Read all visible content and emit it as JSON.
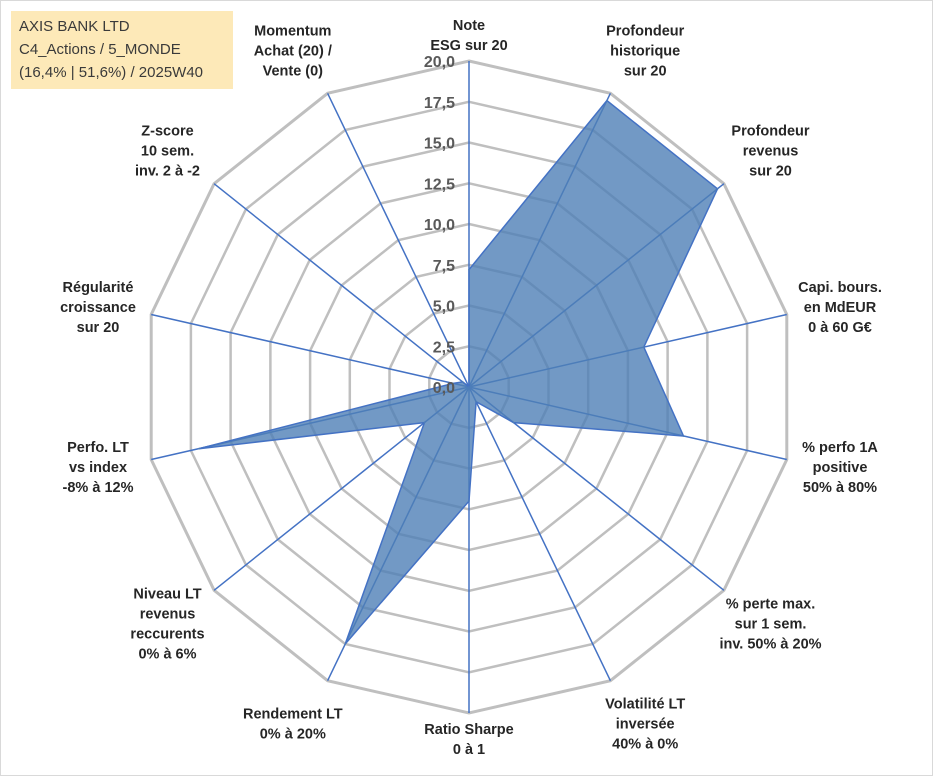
{
  "title_box": {
    "line1": "AXIS BANK LTD",
    "line2": "C4_Actions / 5_MONDE",
    "line3": "(16,4% | 51,6%) / 2025W40"
  },
  "colors": {
    "fill": "#4f7fb6",
    "spoke": "#4472c4",
    "grid": "#bfbfbf",
    "title_bg": "#fde9b8"
  },
  "chart_data": {
    "type": "radar",
    "r_range": [
      0,
      20
    ],
    "tick_values": [
      0,
      2.5,
      5,
      7.5,
      10,
      12.5,
      15,
      17.5,
      20
    ],
    "tick_labels": [
      "0,0",
      "2,5",
      "5,0",
      "7,5",
      "10,0",
      "12,5",
      "15,0",
      "17,5",
      "20,0"
    ],
    "axes": [
      {
        "label": [
          "Note",
          "ESG sur 20"
        ],
        "value": 7.2
      },
      {
        "label": [
          "Profondeur",
          "historique",
          "sur 20"
        ],
        "value": 19.5
      },
      {
        "label": [
          "Profondeur",
          "revenus",
          "sur 20"
        ],
        "value": 19.5
      },
      {
        "label": [
          "Capi. bours.",
          "en MdEUR",
          "0 à 60 G€"
        ],
        "value": 11.0
      },
      {
        "label": [
          "% perfo 1A",
          "positive",
          "50% à 80%"
        ],
        "value": 13.5
      },
      {
        "label": [
          "% perte max.",
          "sur 1 sem.",
          "inv. 50% à 20%"
        ],
        "value": 3.5
      },
      {
        "label": [
          "Volatilité LT",
          "inversée",
          "40% à 0%"
        ],
        "value": 1.0
      },
      {
        "label": [
          "Ratio Sharpe",
          "0 à 1"
        ],
        "value": 7.0
      },
      {
        "label": [
          "Rendement LT",
          "0% à 20%"
        ],
        "value": 17.5
      },
      {
        "label": [
          "Niveau LT",
          "revenus",
          "reccurents",
          "0% à 6%"
        ],
        "value": 3.5
      },
      {
        "label": [
          "Perfo. LT",
          "vs index",
          "-8% à 12%"
        ],
        "value": 17.0
      },
      {
        "label": [
          "Régularité",
          "croissance",
          "sur 20"
        ],
        "value": 1.0
      },
      {
        "label": [
          "Z-score",
          "10 sem.",
          "inv. 2 à -2"
        ],
        "value": 0.5
      },
      {
        "label": [
          "Momentum",
          "Achat (20) /",
          "Vente (0)"
        ],
        "value": 0.0
      }
    ]
  }
}
